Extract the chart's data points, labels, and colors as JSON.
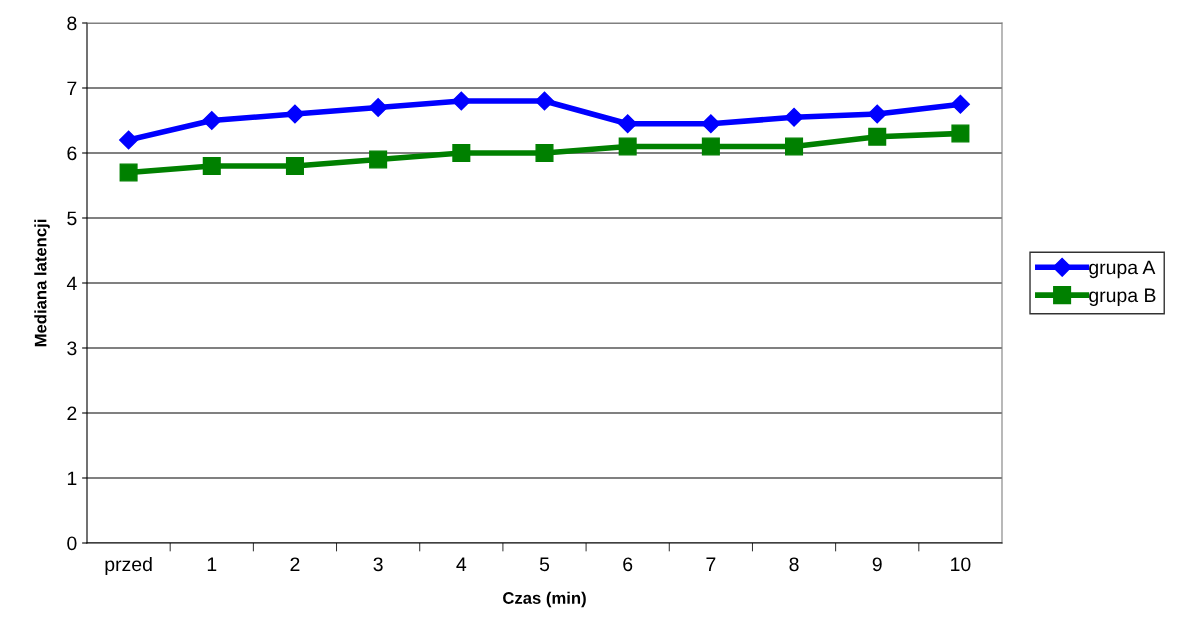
{
  "chart_data": {
    "type": "line",
    "xlabel": "Czas (min)",
    "ylabel": "Mediana latencji",
    "categories": [
      "przed",
      "1",
      "2",
      "3",
      "4",
      "5",
      "6",
      "7",
      "8",
      "9",
      "10"
    ],
    "series": [
      {
        "name": "grupa A",
        "color": "#0000ff",
        "marker": "diamond",
        "values": [
          6.2,
          6.5,
          6.6,
          6.7,
          6.8,
          6.8,
          6.45,
          6.45,
          6.55,
          6.6,
          6.75
        ]
      },
      {
        "name": "grupa B",
        "color": "#008000",
        "marker": "square",
        "values": [
          5.7,
          5.8,
          5.8,
          5.9,
          6.0,
          6.0,
          6.1,
          6.1,
          6.1,
          6.25,
          6.3
        ]
      }
    ],
    "ylim": [
      0,
      8
    ],
    "yticks": [
      0,
      1,
      2,
      3,
      4,
      5,
      6,
      7,
      8
    ],
    "grid": "y",
    "legend": "right"
  }
}
